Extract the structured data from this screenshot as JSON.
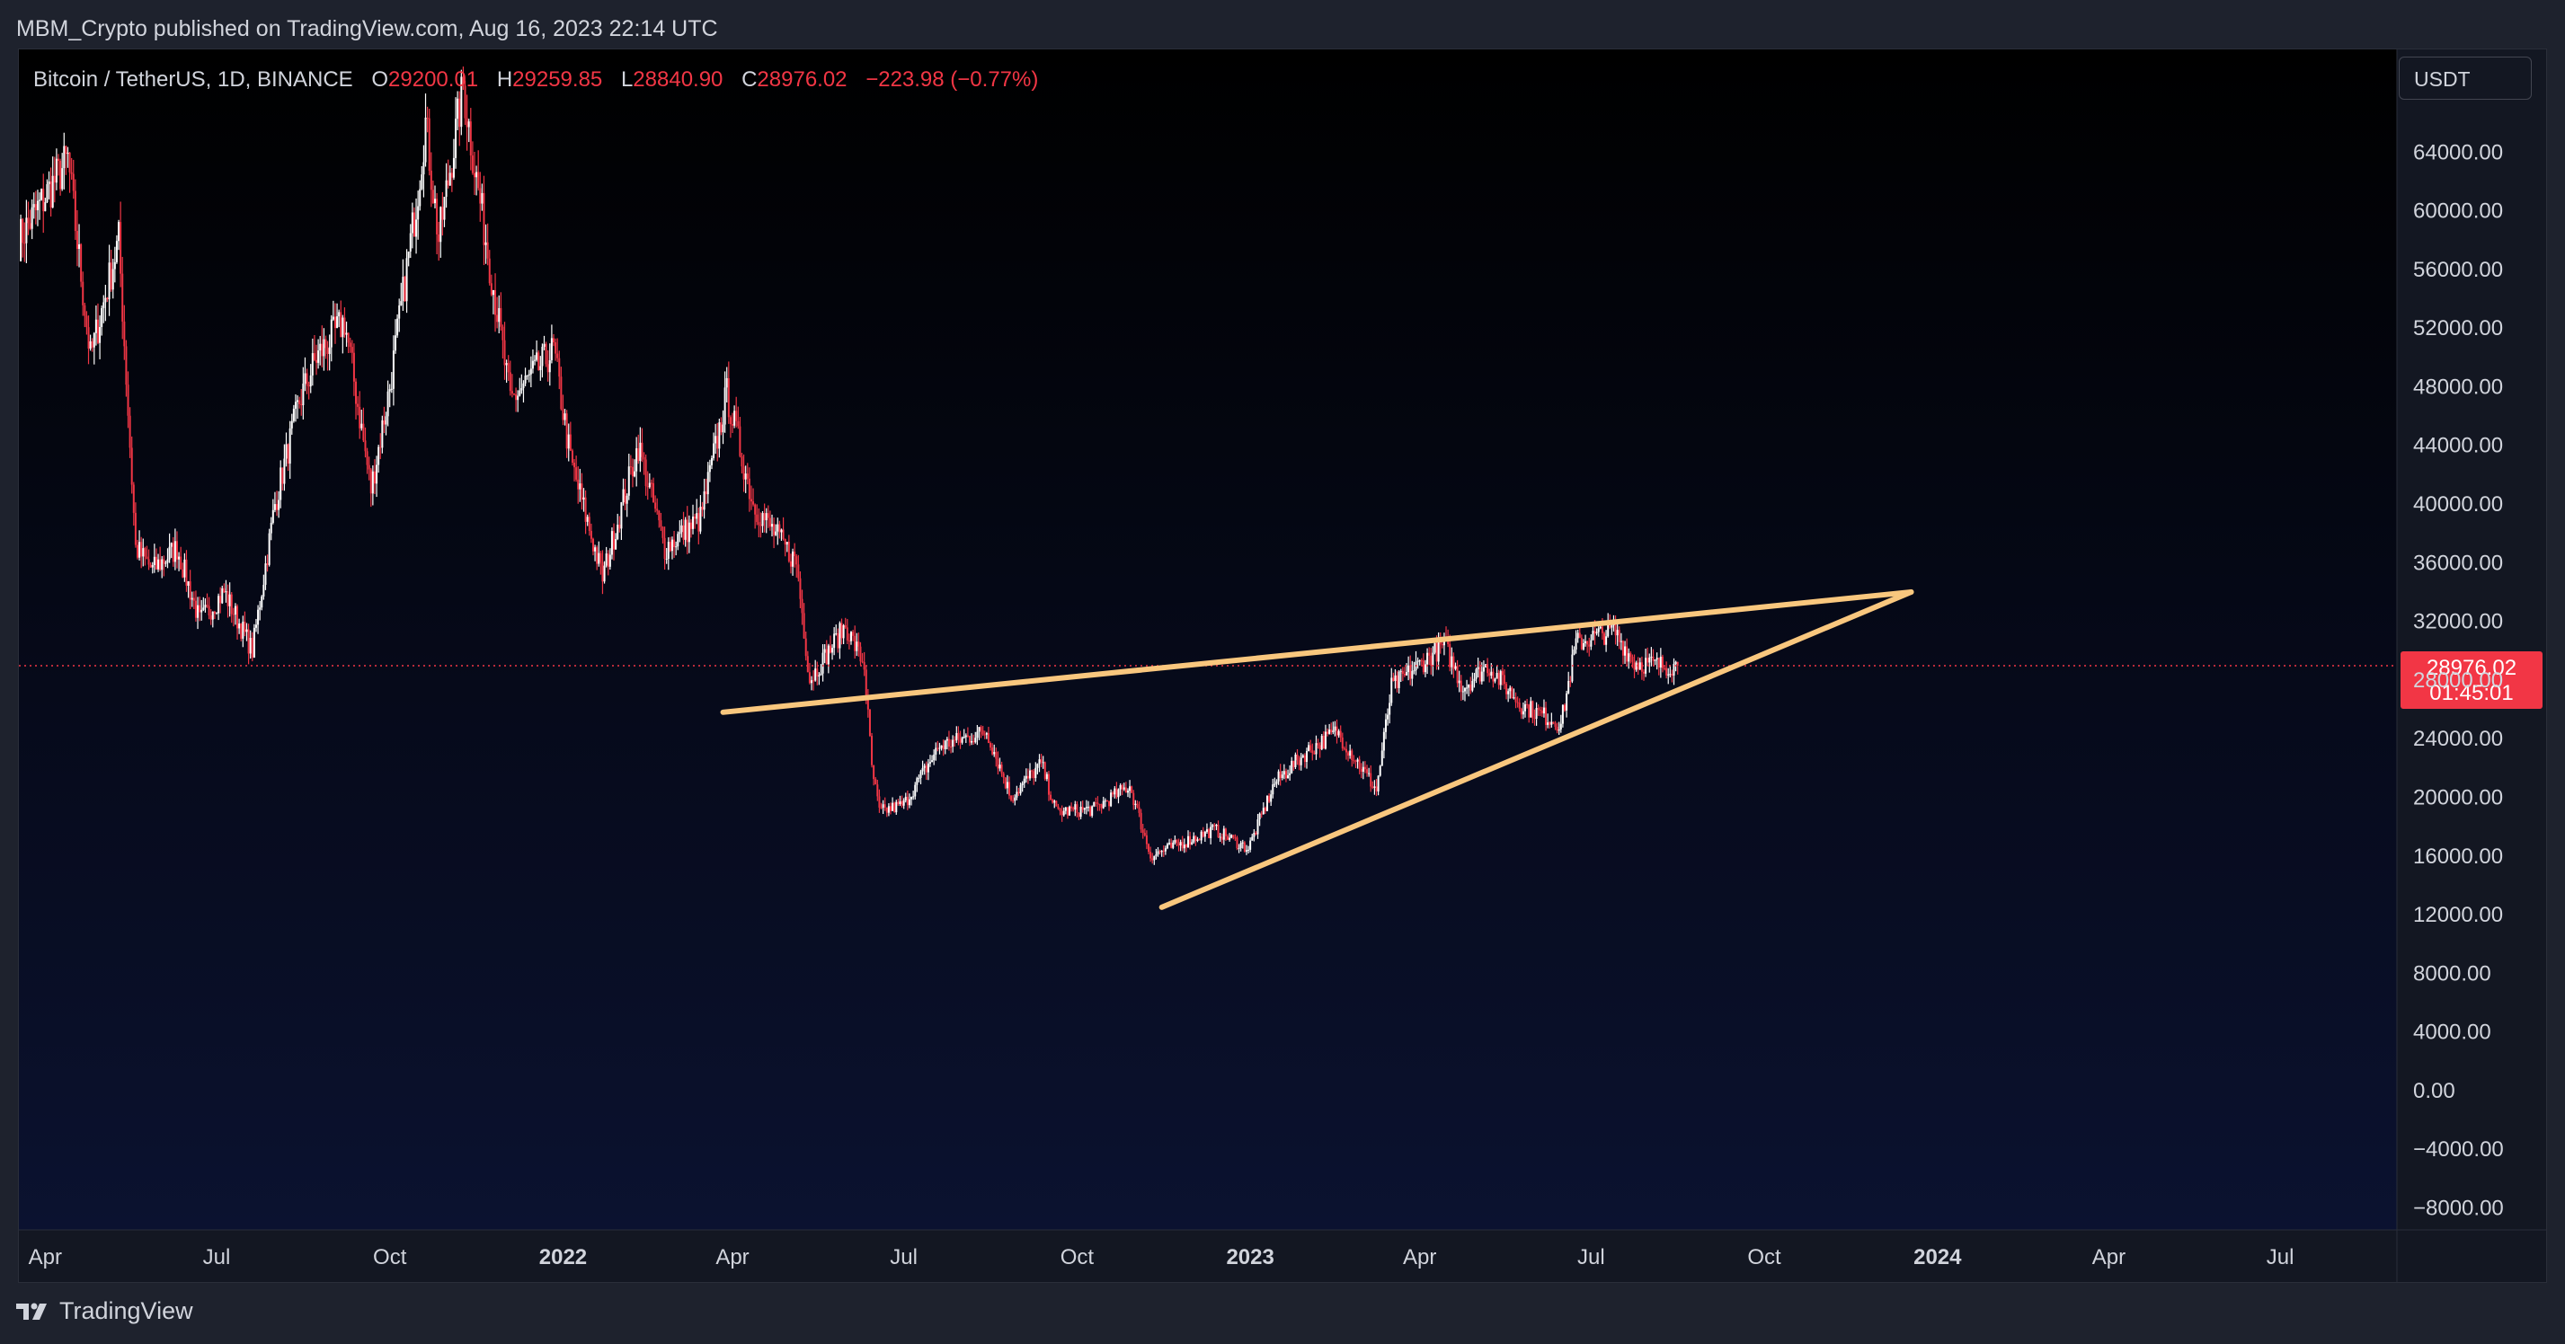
{
  "header": {
    "publish_line": "MBM_Crypto published on TradingView.com, Aug 16, 2023 22:14 UTC"
  },
  "legend": {
    "symbol": "Bitcoin / TetherUS, 1D, BINANCE",
    "open_label": "O",
    "open_value": "29200.01",
    "high_label": "H",
    "high_value": "29259.85",
    "low_label": "L",
    "low_value": "28840.90",
    "close_label": "C",
    "close_value": "28976.02",
    "change": "−223.98 (−0.77%)"
  },
  "currency_button": {
    "label": "USDT"
  },
  "price_tag": {
    "price": "28976.02",
    "countdown": "01:45:01"
  },
  "footer": {
    "brand": "TradingView"
  },
  "colors": {
    "up": "#ffffff",
    "down": "#f23645",
    "trendline": "#f9c77e",
    "price_line": "#f23645",
    "axis_text": "#d1d4dc"
  },
  "icons": {
    "brand": "tradingview-logo-icon"
  },
  "chart_data": {
    "type": "candlestick",
    "title": "Bitcoin / TetherUS, 1D, BINANCE",
    "ylim": [
      -9500,
      71000
    ],
    "xlim": [
      "2021-03-18",
      "2024-09-01"
    ],
    "y_ticks": [
      "64000.00",
      "60000.00",
      "56000.00",
      "52000.00",
      "48000.00",
      "44000.00",
      "40000.00",
      "36000.00",
      "32000.00",
      "28000.00",
      "24000.00",
      "20000.00",
      "16000.00",
      "12000.00",
      "8000.00",
      "4000.00",
      "0.00",
      "−4000.00",
      "−8000.00"
    ],
    "x_ticks": [
      {
        "label": "Apr",
        "date": "2021-04-01",
        "bold": false
      },
      {
        "label": "Jul",
        "date": "2021-07-01",
        "bold": false
      },
      {
        "label": "Oct",
        "date": "2021-10-01",
        "bold": false
      },
      {
        "label": "2022",
        "date": "2022-01-01",
        "bold": true
      },
      {
        "label": "Apr",
        "date": "2022-04-01",
        "bold": false
      },
      {
        "label": "Jul",
        "date": "2022-07-01",
        "bold": false
      },
      {
        "label": "Oct",
        "date": "2022-10-01",
        "bold": false
      },
      {
        "label": "2023",
        "date": "2023-01-01",
        "bold": true
      },
      {
        "label": "Apr",
        "date": "2023-04-01",
        "bold": false
      },
      {
        "label": "Jul",
        "date": "2023-07-01",
        "bold": false
      },
      {
        "label": "Oct",
        "date": "2023-10-01",
        "bold": false
      },
      {
        "label": "2024",
        "date": "2024-01-01",
        "bold": true
      },
      {
        "label": "Apr",
        "date": "2024-04-01",
        "bold": false
      },
      {
        "label": "Jul",
        "date": "2024-07-01",
        "bold": false
      }
    ],
    "price_line": 28976.02,
    "close_series_keypoints": [
      [
        "2021-03-18",
        58000
      ],
      [
        "2021-04-13",
        63500
      ],
      [
        "2021-04-25",
        50000
      ],
      [
        "2021-05-10",
        58000
      ],
      [
        "2021-05-19",
        37000
      ],
      [
        "2021-05-28",
        35500
      ],
      [
        "2021-06-10",
        37000
      ],
      [
        "2021-06-22",
        32000
      ],
      [
        "2021-07-05",
        34000
      ],
      [
        "2021-07-20",
        30000
      ],
      [
        "2021-08-01",
        40000
      ],
      [
        "2021-08-14",
        47000
      ],
      [
        "2021-08-23",
        50000
      ],
      [
        "2021-09-07",
        52500
      ],
      [
        "2021-09-21",
        41000
      ],
      [
        "2021-10-01",
        48000
      ],
      [
        "2021-10-15",
        60500
      ],
      [
        "2021-10-20",
        66000
      ],
      [
        "2021-10-27",
        58000
      ],
      [
        "2021-11-09",
        68500
      ],
      [
        "2021-11-15",
        63000
      ],
      [
        "2021-11-26",
        54000
      ],
      [
        "2021-12-04",
        47000
      ],
      [
        "2021-12-27",
        50500
      ],
      [
        "2022-01-05",
        43000
      ],
      [
        "2022-01-22",
        35000
      ],
      [
        "2022-02-10",
        44000
      ],
      [
        "2022-02-24",
        37000
      ],
      [
        "2022-03-15",
        39000
      ],
      [
        "2022-03-29",
        47500
      ],
      [
        "2022-04-12",
        40000
      ],
      [
        "2022-05-05",
        36000
      ],
      [
        "2022-05-12",
        28000
      ],
      [
        "2022-05-31",
        31700
      ],
      [
        "2022-06-10",
        29000
      ],
      [
        "2022-06-14",
        22000
      ],
      [
        "2022-06-18",
        19000
      ],
      [
        "2022-07-01",
        19500
      ],
      [
        "2022-07-20",
        23500
      ],
      [
        "2022-08-14",
        24500
      ],
      [
        "2022-08-27",
        20000
      ],
      [
        "2022-09-12",
        22300
      ],
      [
        "2022-09-20",
        19000
      ],
      [
        "2022-10-10",
        19200
      ],
      [
        "2022-10-29",
        20800
      ],
      [
        "2022-11-09",
        16000
      ],
      [
        "2022-12-13",
        17800
      ],
      [
        "2022-12-31",
        16500
      ],
      [
        "2023-01-14",
        21000
      ],
      [
        "2023-01-31",
        23100
      ],
      [
        "2023-02-16",
        24500
      ],
      [
        "2023-03-09",
        20500
      ],
      [
        "2023-03-17",
        27500
      ],
      [
        "2023-04-14",
        30400
      ],
      [
        "2023-04-24",
        27500
      ],
      [
        "2023-05-07",
        29000
      ],
      [
        "2023-05-25",
        26300
      ],
      [
        "2023-06-15",
        25000
      ],
      [
        "2023-06-23",
        30500
      ],
      [
        "2023-07-13",
        31400
      ],
      [
        "2023-07-24",
        29200
      ],
      [
        "2023-08-07",
        29000
      ],
      [
        "2023-08-16",
        28976
      ]
    ],
    "trendlines": [
      {
        "name": "upper",
        "from": [
          "2022-03-27",
          25800
        ],
        "to": [
          "2023-12-18",
          34000
        ]
      },
      {
        "name": "lower",
        "from": [
          "2022-11-15",
          12500
        ],
        "to": [
          "2023-12-18",
          34000
        ]
      }
    ]
  }
}
